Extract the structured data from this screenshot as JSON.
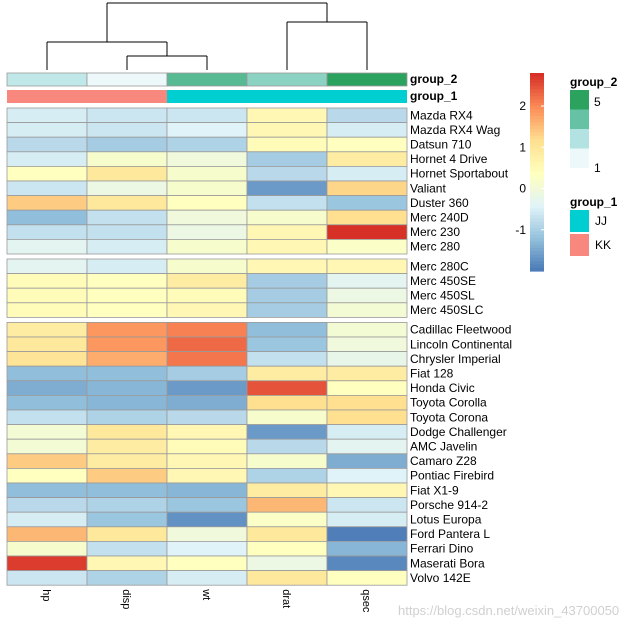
{
  "chart_data": {
    "type": "heatmap",
    "title": "",
    "columns": [
      "hp",
      "disp",
      "wt",
      "drat",
      "qsec"
    ],
    "rows": [
      "Mazda RX4",
      "Mazda RX4 Wag",
      "Datsun 710",
      "Hornet 4 Drive",
      "Hornet Sportabout",
      "Valiant",
      "Duster 360",
      "Merc 240D",
      "Merc 230",
      "Merc 280",
      "Merc 280C",
      "Merc 450SE",
      "Merc 450SL",
      "Merc 450SLC",
      "Cadillac Fleetwood",
      "Lincoln Continental",
      "Chrysler Imperial",
      "Fiat 128",
      "Honda Civic",
      "Toyota Corolla",
      "Toyota Corona",
      "Dodge Challenger",
      "AMC Javelin",
      "Camaro Z28",
      "Pontiac Firebird",
      "Fiat X1-9",
      "Porsche 914-2",
      "Lotus Europa",
      "Ford Pantera L",
      "Ferrari Dino",
      "Maserati Bora",
      "Volvo 142E"
    ],
    "row_groups": [
      10,
      4,
      18
    ],
    "values": [
      [
        -0.5,
        -0.6,
        -0.6,
        0.6,
        -0.8
      ],
      [
        -0.5,
        -0.6,
        -0.4,
        0.6,
        -0.5
      ],
      [
        -0.8,
        -1.0,
        -0.9,
        0.5,
        0.4
      ],
      [
        -0.5,
        0.2,
        0.0,
        -1.0,
        0.9
      ],
      [
        0.4,
        1.0,
        0.2,
        -0.8,
        -0.5
      ],
      [
        -0.6,
        -0.1,
        0.2,
        -1.6,
        1.3
      ],
      [
        1.4,
        1.0,
        0.4,
        -0.7,
        -1.1
      ],
      [
        -1.2,
        -0.7,
        -0.0,
        0.2,
        1.2
      ],
      [
        -0.7,
        -0.7,
        -0.1,
        0.6,
        2.8
      ],
      [
        -0.3,
        -0.5,
        0.2,
        0.6,
        0.3
      ],
      [
        -0.3,
        -0.5,
        0.2,
        0.6,
        0.6
      ],
      [
        0.5,
        0.4,
        0.9,
        -1.0,
        -0.3
      ],
      [
        0.5,
        0.4,
        0.5,
        -1.0,
        -0.1
      ],
      [
        0.5,
        0.4,
        0.6,
        -1.0,
        0.1
      ],
      [
        0.9,
        1.9,
        2.1,
        -1.2,
        0.1
      ],
      [
        1.0,
        1.9,
        2.3,
        -1.1,
        -0.0
      ],
      [
        1.1,
        1.7,
        2.2,
        -0.7,
        -0.2
      ],
      [
        -1.2,
        -1.2,
        -1.0,
        0.9,
        0.9
      ],
      [
        -1.4,
        -1.3,
        -1.6,
        2.5,
        0.4
      ],
      [
        -1.2,
        -1.3,
        -1.4,
        1.2,
        1.2
      ],
      [
        -0.7,
        -0.9,
        -0.8,
        0.2,
        1.2
      ],
      [
        0.1,
        1.0,
        0.6,
        -1.6,
        -0.5
      ],
      [
        0.1,
        0.9,
        0.5,
        -0.8,
        -0.3
      ],
      [
        1.4,
        0.9,
        0.6,
        0.2,
        -1.4
      ],
      [
        0.4,
        1.4,
        0.6,
        -0.9,
        -0.4
      ],
      [
        -1.2,
        -1.2,
        -1.3,
        0.9,
        0.6
      ],
      [
        -0.8,
        -0.9,
        -1.1,
        1.6,
        -0.6
      ],
      [
        -0.5,
        -1.1,
        -1.7,
        0.3,
        -0.5
      ],
      [
        1.6,
        1.0,
        0.0,
        1.0,
        -1.9
      ],
      [
        0.2,
        -0.7,
        -0.4,
        0.4,
        -1.3
      ],
      [
        2.7,
        0.6,
        0.4,
        -0.1,
        -1.8
      ],
      [
        -0.6,
        -0.9,
        -0.5,
        1.0,
        0.4
      ]
    ],
    "color_scale": {
      "range": [
        -2,
        2.8
      ],
      "ticks": [
        "-1",
        "0",
        "1",
        "2"
      ],
      "tick_values": [
        -1,
        0,
        1,
        2
      ],
      "colors": [
        "#4575b4",
        "#91bfdb",
        "#e0f3f8",
        "#ffffbf",
        "#fee090",
        "#fc8d59",
        "#d73027"
      ]
    },
    "annotations": [
      {
        "name": "group_2",
        "values": [
          2,
          1,
          4,
          3,
          5
        ],
        "legend_ticks": [
          "5",
          "1"
        ],
        "legend_colors": [
          "#2ca25f",
          "#66c2a4",
          "#b2e2e2",
          "#edf8fb"
        ],
        "range": [
          1,
          5
        ]
      },
      {
        "name": "group_1",
        "values": [
          "KK",
          "KK",
          "JJ",
          "JJ",
          "JJ"
        ],
        "levels": [
          "JJ",
          "KK"
        ],
        "level_colors": {
          "JJ": "#00ced1",
          "KK": "#f8877e"
        }
      }
    ],
    "col_dendrogram": {
      "order": [
        "hp",
        "disp",
        "wt",
        "drat",
        "qsec"
      ]
    }
  },
  "watermark": "https://blog.csdn.net/weixin_43700050"
}
